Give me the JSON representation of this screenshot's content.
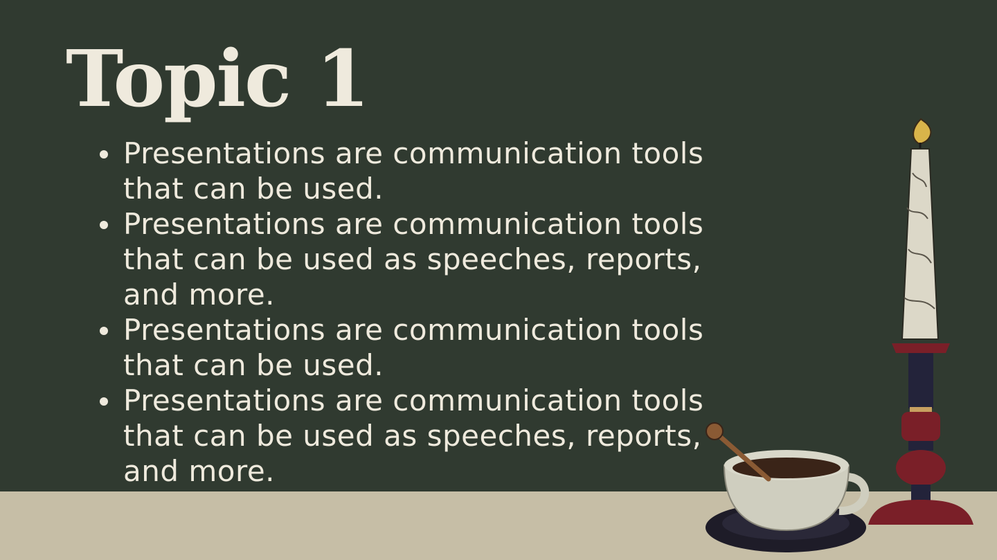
{
  "slide": {
    "title": "Topic 1",
    "bullets": [
      "Presentations are communication tools that can be used.",
      "Presentations are communication tools that can be used as speeches, reports, and more.",
      "Presentations are communication tools that can be used.",
      "Presentations are communication tools that can be used as speeches, reports, and more."
    ]
  },
  "colors": {
    "background": "#303a30",
    "table": "#c6bea6",
    "text": "#efeadd",
    "candle": "#dcd8c8",
    "candlestick": "#7a1f28",
    "coffee": "#3a2418",
    "flame": "#d9b44a"
  },
  "icons": {
    "candle": "candle-icon",
    "coffee_cup": "coffee-cup-icon"
  }
}
